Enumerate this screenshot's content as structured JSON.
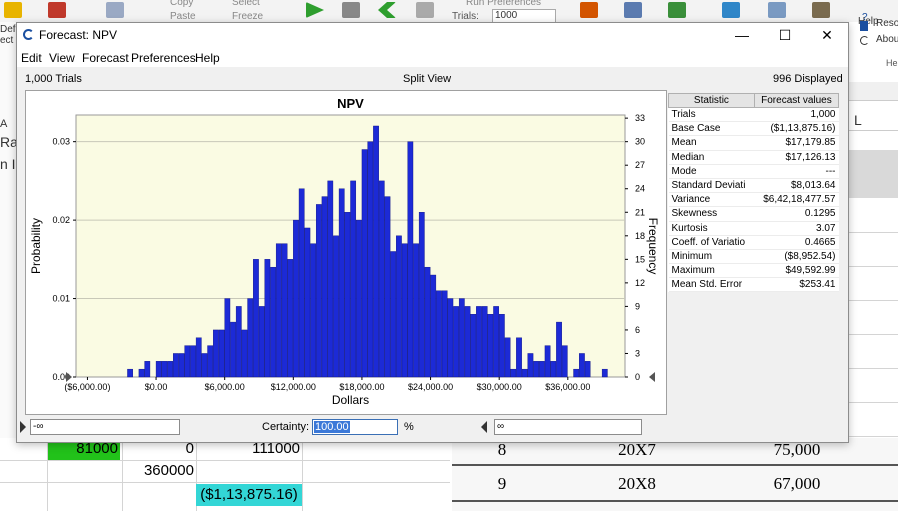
{
  "excel": {
    "ribbon_items": [
      "Copy",
      "Select",
      "Paste",
      "Freeze",
      "Run Preferences",
      "Trials:",
      "1000"
    ],
    "left_labels": [
      "Def",
      "ect",
      "A",
      "Ra",
      "n I"
    ],
    "right_labels": [
      "Help",
      "Reso",
      "Abou",
      "He",
      "L"
    ],
    "cells_left": [
      {
        "value": "81000",
        "highlight": "#22c21a"
      },
      {
        "value": "0"
      },
      {
        "value": "111000"
      },
      {
        "value": "360000"
      },
      {
        "value": "($1,13,875.16)",
        "highlight": "#33d6d6"
      }
    ],
    "table_rows": [
      {
        "n": "8",
        "size": "20X7",
        "amount": "75,000"
      },
      {
        "n": "9",
        "size": "20X8",
        "amount": "67,000"
      }
    ]
  },
  "window": {
    "title": "Forecast: NPV",
    "controls": {
      "minimize": "—",
      "maximize": "☐",
      "close": "✕"
    },
    "menu": [
      "Edit",
      "View",
      "Forecast",
      "Preferences",
      "Help"
    ],
    "info": {
      "trials": "1,000 Trials",
      "view": "Split View",
      "displayed": "996 Displayed"
    }
  },
  "chart_data": {
    "type": "bar",
    "title": "NPV",
    "xlabel": "Dollars",
    "ylabel": "Probability",
    "y2label": "Frequency",
    "x_tick_labels": [
      "($6,000.00)",
      "$0.00",
      "$6,000.00",
      "$12,000.00",
      "$18,000.00",
      "$24,000.00",
      "$30,000.00",
      "$36,000.00"
    ],
    "x_ticks": [
      -6000,
      0,
      6000,
      12000,
      18000,
      24000,
      30000,
      36000
    ],
    "xlim": [
      -7000,
      41000
    ],
    "y_ticks": [
      0,
      0.01,
      0.02,
      0.03
    ],
    "y_tick_labels": [
      "0.00",
      "0.01",
      "0.02",
      "0.03"
    ],
    "ylim": [
      0,
      0.0334
    ],
    "y2_ticks": [
      0,
      3,
      6,
      9,
      12,
      15,
      18,
      21,
      24,
      27,
      30,
      33
    ],
    "y2lim": [
      0,
      33.4
    ],
    "bin_start": -2500,
    "bin_width": 500,
    "frequencies": [
      1,
      0,
      1,
      2,
      0,
      2,
      2,
      2,
      3,
      3,
      4,
      4,
      5,
      3,
      4,
      6,
      6,
      10,
      7,
      9,
      6,
      10,
      15,
      9,
      15,
      14,
      17,
      17,
      15,
      20,
      24,
      19,
      17,
      22,
      23,
      25,
      18,
      24,
      21,
      25,
      20,
      29,
      30,
      32,
      25,
      23,
      16,
      18,
      17,
      30,
      17,
      21,
      14,
      13,
      11,
      11,
      10,
      9,
      10,
      9,
      8,
      9,
      9,
      8,
      9,
      8,
      5,
      1,
      5,
      1,
      3,
      2,
      2,
      4,
      2,
      7,
      4,
      0,
      1,
      3,
      2,
      0,
      0,
      1
    ],
    "bar_color": "#1c2ad6",
    "plot_background": "#fafbe3",
    "grid": true
  },
  "stats": {
    "headers": [
      "Statistic",
      "Forecast values"
    ],
    "rows": [
      [
        "Trials",
        "1,000"
      ],
      [
        "Base Case",
        "($1,13,875.16)"
      ],
      [
        "Mean",
        "$17,179.85"
      ],
      [
        "Median",
        "$17,126.13"
      ],
      [
        "Mode",
        "---"
      ],
      [
        "Standard Deviati",
        "$8,013.64"
      ],
      [
        "Variance",
        "$6,42,18,477.57"
      ],
      [
        "Skewness",
        "0.1295"
      ],
      [
        "Kurtosis",
        "3.07"
      ],
      [
        "Coeff. of Variatio",
        "0.4665"
      ],
      [
        "Minimum",
        "($8,952.54)"
      ],
      [
        "Maximum",
        "$49,592.99"
      ],
      [
        "Mean Std. Error",
        "$253.41"
      ]
    ]
  },
  "controls": {
    "lower_value": "-∞",
    "certainty_label": "Certainty:",
    "certainty_value": "100.00",
    "pct": "%",
    "upper_value": "∞"
  }
}
